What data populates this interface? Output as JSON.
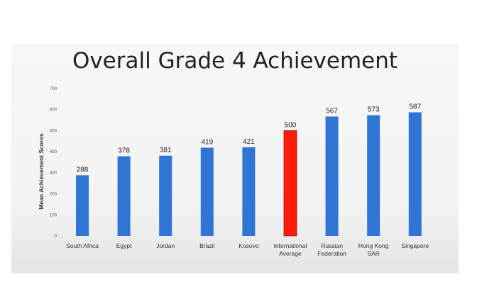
{
  "chart_data": {
    "type": "bar",
    "title": "Overall Grade 4 Achievement",
    "ylabel": "Mean Achievement Scores",
    "xlabel": "",
    "ylim": [
      0,
      700
    ],
    "yticks": [
      "0",
      "100",
      "200",
      "300",
      "400",
      "500",
      "600",
      "700"
    ],
    "grid": false,
    "categories": [
      [
        "South Africa"
      ],
      [
        "Egypt"
      ],
      [
        "Jordan"
      ],
      [
        "Brazil"
      ],
      [
        "Kosovo"
      ],
      [
        "International",
        "Average"
      ],
      [
        "Russian",
        "Federation"
      ],
      [
        "Hong Kong",
        "SAR"
      ],
      [
        "Singapore"
      ]
    ],
    "values": [
      288,
      378,
      381,
      419,
      421,
      500,
      567,
      573,
      587
    ],
    "value_labels": [
      "288",
      "378",
      "381",
      "419",
      "421",
      "500",
      "567",
      "573",
      "587"
    ],
    "colors": [
      "#2e75d6",
      "#2e75d6",
      "#2e75d6",
      "#2e75d6",
      "#2e75d6",
      "#ff1a0a",
      "#2e75d6",
      "#2e75d6",
      "#2e75d6"
    ]
  }
}
